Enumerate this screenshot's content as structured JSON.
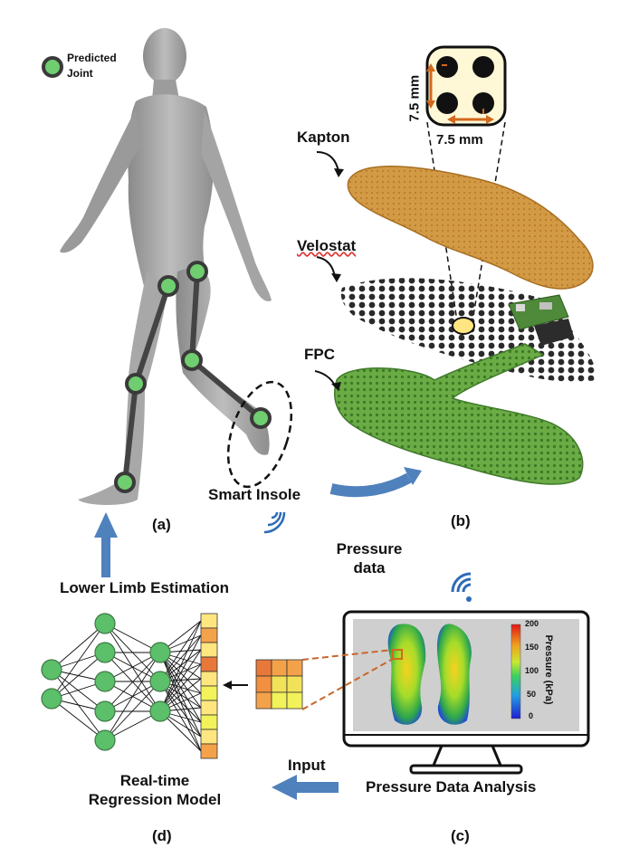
{
  "legend": {
    "predicted_joint": "Predicted\nJoint"
  },
  "layers": {
    "kapton": "Kapton",
    "velostat": "Velostat",
    "fpc": "FPC"
  },
  "dimensions": {
    "vertical": "7.5 mm",
    "horizontal": "7.5 mm"
  },
  "labels": {
    "smart_insole": "Smart Insole",
    "pressure_data": "Pressure\ndata",
    "lower_limb_estimation": "Lower Limb Estimation",
    "input": "Input",
    "pressure_data_analysis": "Pressure Data Analysis",
    "regression_model": "Real-time\nRegression Model"
  },
  "panels": {
    "a": "(a)",
    "b": "(b)",
    "c": "(c)",
    "d": "(d)"
  },
  "colorbar": {
    "title": "Pressure (kPa)",
    "ticks": [
      "200",
      "150",
      "100",
      "50",
      "0"
    ]
  },
  "colors": {
    "accent_arrow": "#4f81bd",
    "joint": "#6fce6f",
    "kapton": "#c8872e",
    "fpc": "#6aa84f"
  }
}
